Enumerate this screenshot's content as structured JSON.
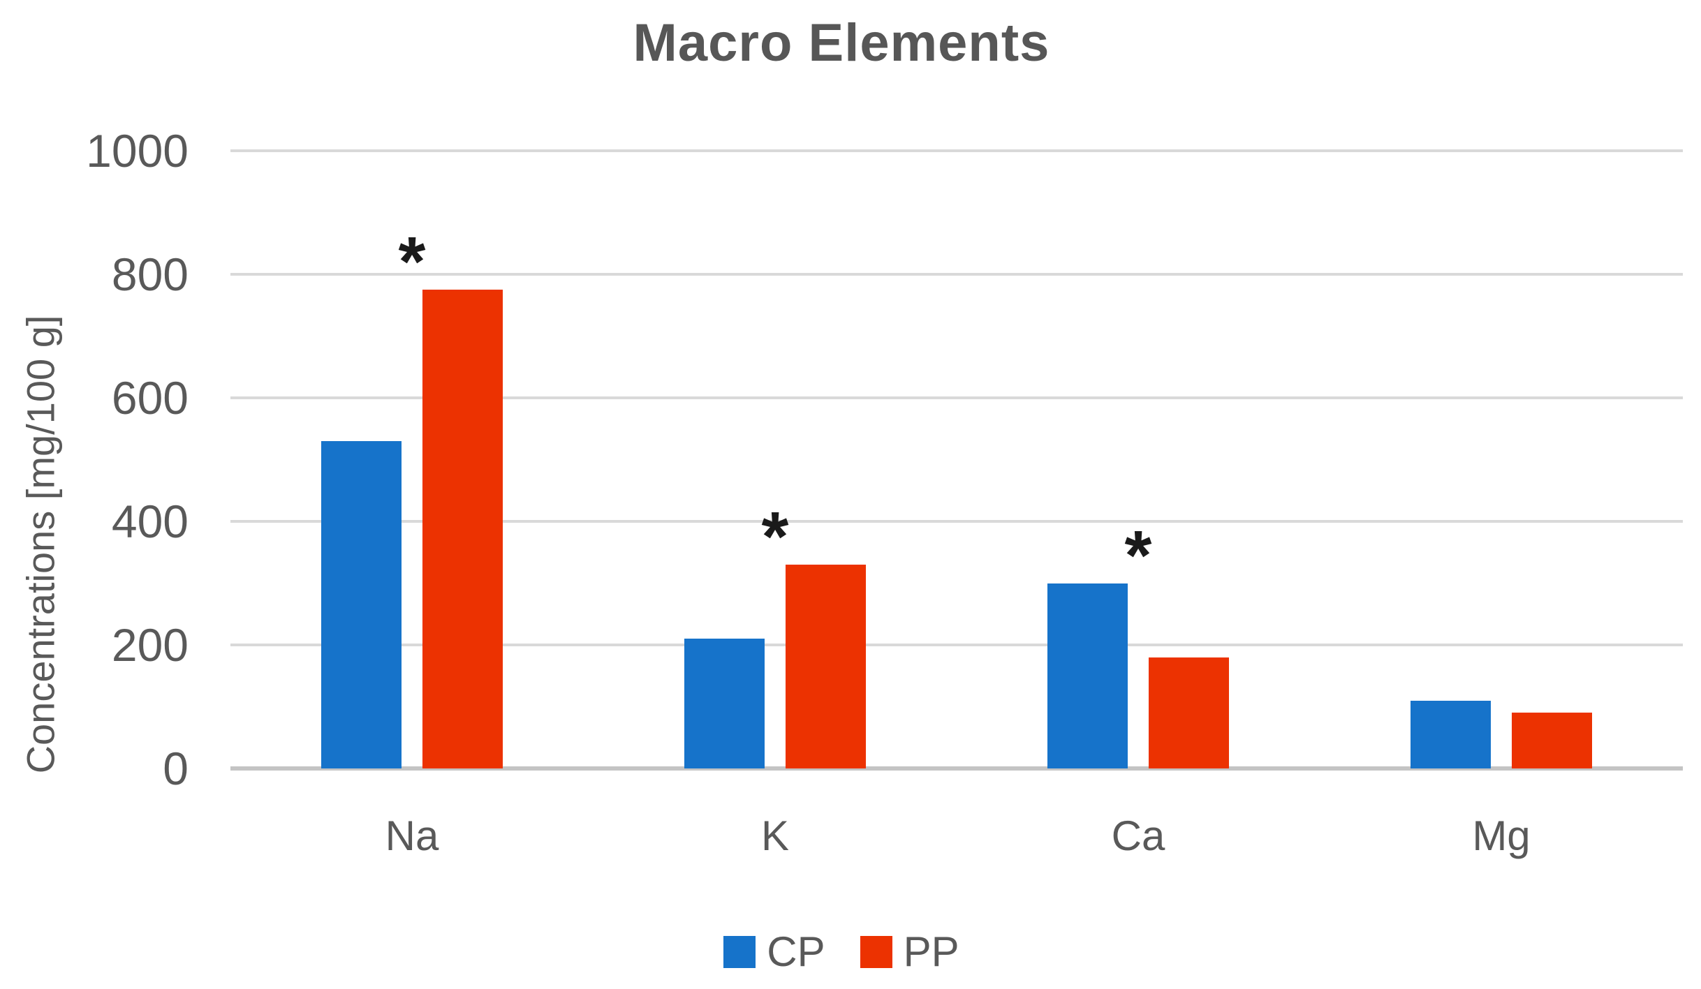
{
  "chart_data": {
    "type": "bar",
    "title": "Macro Elements",
    "xlabel": "",
    "ylabel": "Concentrations [mg/100 g]",
    "categories": [
      "Na",
      "K",
      "Ca",
      "Mg"
    ],
    "series": [
      {
        "name": "CP",
        "color": "#1673CA",
        "values": [
          530,
          210,
          300,
          110
        ]
      },
      {
        "name": "PP",
        "color": "#EC3201",
        "values": [
          775,
          330,
          180,
          90
        ]
      }
    ],
    "ylim": [
      0,
      1000
    ],
    "yticks": [
      0,
      200,
      400,
      600,
      800,
      1000
    ],
    "grid": "horizontal",
    "legend_position": "bottom-center",
    "significance": {
      "marker": "*",
      "categories": [
        "Na",
        "K",
        "Ca"
      ],
      "note": "asterisk centered above the taller bar of the pair"
    }
  },
  "style_colors": {
    "text": "#595959",
    "title_text": "#575757",
    "gridline": "#D9D9D9",
    "baseline": "#C4C4C4",
    "marker": "#1A1A1A",
    "background": "#FFFFFF"
  }
}
